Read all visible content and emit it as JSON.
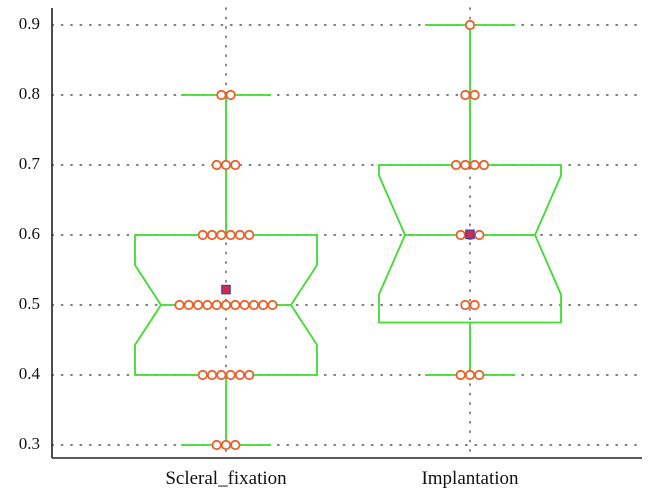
{
  "chart_data": {
    "type": "box",
    "notched": true,
    "title": "",
    "xlabel": "",
    "ylabel": "",
    "ylim": [
      0.29,
      0.92
    ],
    "yticks": [
      0.3,
      0.4,
      0.5,
      0.6,
      0.7,
      0.8,
      0.9
    ],
    "ytick_labels": [
      "0.3",
      "0.4",
      "0.5",
      "0.6",
      "0.7",
      "0.8",
      "0.9"
    ],
    "grid": "dotted",
    "categories": [
      "Scleral_fixation",
      "Implantation"
    ],
    "boxes": [
      {
        "category": "Scleral_fixation",
        "whisker_low": 0.3,
        "q1": 0.4,
        "median": 0.5,
        "q3": 0.6,
        "whisker_high": 0.8,
        "notch_low": 0.443,
        "notch_high": 0.557,
        "mean": 0.522,
        "points": [
          {
            "y": 0.3,
            "count": 3
          },
          {
            "y": 0.4,
            "count": 6
          },
          {
            "y": 0.5,
            "count": 11
          },
          {
            "y": 0.6,
            "count": 6
          },
          {
            "y": 0.7,
            "count": 3
          },
          {
            "y": 0.8,
            "count": 2
          }
        ]
      },
      {
        "category": "Implantation",
        "whisker_low": 0.4,
        "q1": 0.475,
        "median": 0.6,
        "q3": 0.7,
        "whisker_high": 0.9,
        "notch_low": 0.515,
        "notch_high": 0.685,
        "mean": 0.601,
        "points": [
          {
            "y": 0.4,
            "count": 3
          },
          {
            "y": 0.5,
            "count": 2
          },
          {
            "y": 0.6,
            "count": 3
          },
          {
            "y": 0.7,
            "count": 4
          },
          {
            "y": 0.8,
            "count": 2
          },
          {
            "y": 0.9,
            "count": 1
          }
        ]
      }
    ],
    "colors": {
      "box": "#3ddc2e",
      "point_edge": "#e8602a",
      "mean_fill": "#d42a4a",
      "mean_edge": "#4040b0",
      "grid": "#555555",
      "axis": "#222222"
    }
  }
}
